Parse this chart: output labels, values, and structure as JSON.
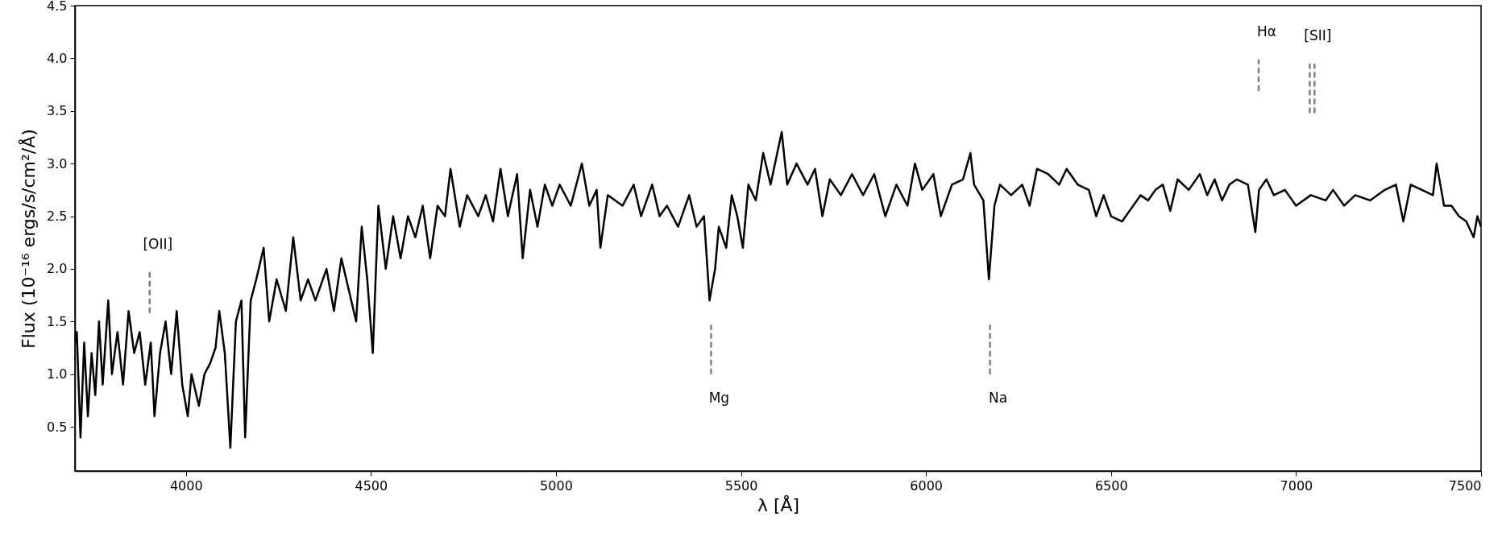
{
  "chart_data": {
    "type": "line",
    "xlabel": "λ [Å]",
    "ylabel": "Flux (10⁻¹⁶ ergs/s/cm²/Å)",
    "xlim": [
      3700,
      7500
    ],
    "ylim": [
      0.08,
      4.5
    ],
    "xticks": [
      4000,
      4500,
      5000,
      5500,
      6000,
      6500,
      7000,
      7500
    ],
    "yticks": [
      0.5,
      {
        "value": 1,
        "label": "1.0"
      },
      1.5,
      {
        "value": 2,
        "label": "2.0"
      },
      2.5,
      {
        "value": 3,
        "label": "3.0"
      },
      3.5,
      {
        "value": 4,
        "label": "4.0"
      },
      4.5
    ],
    "marker": "none",
    "line_style": "solid",
    "annotations": [
      {
        "text": "[OII]",
        "x": 3902,
        "y": 1.97
      },
      {
        "text": "Mg",
        "x": 5419,
        "y": 1.0
      },
      {
        "text": "Na",
        "x": 6173,
        "y": 1.0
      },
      {
        "text": "Hα",
        "x": 6899,
        "y": 3.99
      },
      {
        "text": "[SII]",
        "x": 7037,
        "y": 3.95
      }
    ],
    "series": [
      {
        "color": "#808080",
        "line_style": "dashed",
        "x": [
          3902,
          3902
        ],
        "values": [
          1.58,
          1.97
        ]
      },
      {
        "color": "#808080",
        "line_style": "dashed",
        "x": [
          5419,
          5419
        ],
        "values": [
          1.0,
          1.47
        ]
      },
      {
        "color": "#808080",
        "line_style": "dashed",
        "x": [
          6173,
          6173
        ],
        "values": [
          1.0,
          1.47
        ]
      },
      {
        "color": "#808080",
        "line_style": "dashed",
        "x": [
          6899,
          6899
        ],
        "values": [
          3.69,
          3.99
        ]
      },
      {
        "color": "#808080",
        "line_style": "dashed",
        "x": [
          7037,
          7037
        ],
        "values": [
          3.48,
          3.95
        ]
      },
      {
        "color": "#808080",
        "line_style": "dashed",
        "x": [
          7050,
          7050
        ],
        "values": [
          3.48,
          3.95
        ]
      },
      {
        "color": "#000000",
        "x": [
          3700,
          3705,
          3715,
          3725,
          3735,
          3745,
          3755,
          3765,
          3775,
          3790,
          3800,
          3815,
          3830,
          3845,
          3860,
          3875,
          3890,
          3905,
          3915,
          3930,
          3945,
          3960,
          3975,
          3990,
          4005,
          4015,
          4035,
          4050,
          4065,
          4080,
          4090,
          4105,
          4120,
          4135,
          4150,
          4160,
          4175,
          4190,
          4210,
          4225,
          4245,
          4270,
          4290,
          4310,
          4330,
          4350,
          4380,
          4400,
          4420,
          4440,
          4460,
          4475,
          4490,
          4505,
          4520,
          4540,
          4560,
          4580,
          4600,
          4620,
          4640,
          4660,
          4680,
          4700,
          4715,
          4740,
          4760,
          4790,
          4810,
          4830,
          4850,
          4870,
          4895,
          4910,
          4930,
          4950,
          4970,
          4990,
          5010,
          5040,
          5070,
          5090,
          5110,
          5120,
          5140,
          5160,
          5180,
          5210,
          5230,
          5260,
          5280,
          5300,
          5330,
          5360,
          5380,
          5400,
          5415,
          5430,
          5440,
          5460,
          5475,
          5490,
          5505,
          5520,
          5540,
          5560,
          5580,
          5610,
          5625,
          5650,
          5680,
          5700,
          5720,
          5740,
          5770,
          5800,
          5830,
          5860,
          5890,
          5920,
          5950,
          5970,
          5990,
          6020,
          6040,
          6070,
          6100,
          6120,
          6130,
          6155,
          6170,
          6185,
          6200,
          6230,
          6260,
          6280,
          6300,
          6330,
          6360,
          6380,
          6410,
          6440,
          6460,
          6480,
          6500,
          6530,
          6560,
          6580,
          6600,
          6620,
          6640,
          6660,
          6680,
          6710,
          6740,
          6760,
          6780,
          6800,
          6820,
          6840,
          6870,
          6890,
          6900,
          6920,
          6940,
          6970,
          7000,
          7040,
          7080,
          7100,
          7130,
          7160,
          7200,
          7240,
          7270,
          7290,
          7310,
          7340,
          7370,
          7380,
          7400,
          7420,
          7440,
          7460,
          7480,
          7490,
          7500
        ],
        "values": [
          1.3,
          1.4,
          0.4,
          1.3,
          0.6,
          1.2,
          0.8,
          1.5,
          0.9,
          1.7,
          1.0,
          1.4,
          0.9,
          1.6,
          1.2,
          1.4,
          0.9,
          1.3,
          0.6,
          1.2,
          1.5,
          1.0,
          1.6,
          0.9,
          0.6,
          1.0,
          0.7,
          1.0,
          1.1,
          1.25,
          1.6,
          1.2,
          0.3,
          1.5,
          1.7,
          0.4,
          1.7,
          1.9,
          2.2,
          1.5,
          1.9,
          1.6,
          2.3,
          1.7,
          1.9,
          1.7,
          2.0,
          1.6,
          2.1,
          1.8,
          1.5,
          2.4,
          1.9,
          1.2,
          2.6,
          2.0,
          2.5,
          2.1,
          2.5,
          2.3,
          2.6,
          2.1,
          2.6,
          2.5,
          2.95,
          2.4,
          2.7,
          2.5,
          2.7,
          2.45,
          2.95,
          2.5,
          2.9,
          2.1,
          2.75,
          2.4,
          2.8,
          2.6,
          2.8,
          2.6,
          3.0,
          2.6,
          2.75,
          2.2,
          2.7,
          2.65,
          2.6,
          2.8,
          2.5,
          2.8,
          2.5,
          2.6,
          2.4,
          2.7,
          2.4,
          2.5,
          1.7,
          2.0,
          2.4,
          2.2,
          2.7,
          2.5,
          2.2,
          2.8,
          2.65,
          3.1,
          2.8,
          3.3,
          2.8,
          3.0,
          2.8,
          2.95,
          2.5,
          2.85,
          2.7,
          2.9,
          2.7,
          2.9,
          2.5,
          2.8,
          2.6,
          3.0,
          2.75,
          2.9,
          2.5,
          2.8,
          2.85,
          3.1,
          2.8,
          2.65,
          1.9,
          2.6,
          2.8,
          2.7,
          2.8,
          2.6,
          2.95,
          2.9,
          2.8,
          2.95,
          2.8,
          2.75,
          2.5,
          2.7,
          2.5,
          2.45,
          2.6,
          2.7,
          2.65,
          2.75,
          2.8,
          2.55,
          2.85,
          2.75,
          2.9,
          2.7,
          2.85,
          2.65,
          2.8,
          2.85,
          2.8,
          2.35,
          2.75,
          2.85,
          2.7,
          2.75,
          2.6,
          2.7,
          2.65,
          2.75,
          2.6,
          2.7,
          2.65,
          2.75,
          2.8,
          2.45,
          2.8,
          2.75,
          2.7,
          3.0,
          2.6,
          2.6,
          2.5,
          2.45,
          2.3,
          2.5,
          2.4
        ]
      }
    ]
  }
}
